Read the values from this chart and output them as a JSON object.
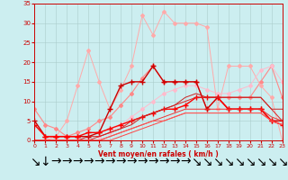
{
  "xlabel": "Vent moyen/en rafales ( km/h )",
  "xlim": [
    0,
    23
  ],
  "ylim": [
    0,
    35
  ],
  "yticks": [
    0,
    5,
    10,
    15,
    20,
    25,
    30,
    35
  ],
  "xticks": [
    0,
    1,
    2,
    3,
    4,
    5,
    6,
    7,
    8,
    9,
    10,
    11,
    12,
    13,
    14,
    15,
    16,
    17,
    18,
    19,
    20,
    21,
    22,
    23
  ],
  "bg_color": "#cceef0",
  "grid_color": "#aacccc",
  "lines": [
    {
      "x": [
        0,
        1,
        2,
        3,
        4,
        5,
        6,
        7,
        8,
        9,
        10,
        11,
        12,
        13,
        14,
        15,
        16,
        17,
        18,
        19,
        20,
        21,
        22,
        23
      ],
      "y": [
        8,
        4,
        3,
        1,
        2,
        3,
        5,
        6,
        9,
        12,
        16,
        19,
        15,
        15,
        15,
        15,
        8,
        11,
        11,
        11,
        11,
        15,
        19,
        11
      ],
      "color": "#ff8888",
      "lw": 0.8,
      "marker": "D",
      "ms": 2.0,
      "ls": "-"
    },
    {
      "x": [
        0,
        1,
        2,
        3,
        4,
        5,
        6,
        7,
        8,
        9,
        10,
        11,
        12,
        13,
        14,
        15,
        16,
        17,
        18,
        19,
        20,
        21,
        22,
        23
      ],
      "y": [
        0,
        0,
        1,
        5,
        14,
        23,
        15,
        8,
        13,
        19,
        32,
        27,
        33,
        30,
        30,
        30,
        29,
        8,
        19,
        19,
        19,
        14,
        11,
        0
      ],
      "color": "#ffaaaa",
      "lw": 0.7,
      "marker": "D",
      "ms": 2.0,
      "ls": "-"
    },
    {
      "x": [
        0,
        1,
        2,
        3,
        4,
        5,
        6,
        7,
        8,
        9,
        10,
        11,
        12,
        13,
        14,
        15,
        16,
        17,
        18,
        19,
        20,
        21,
        22,
        23
      ],
      "y": [
        0,
        0,
        0,
        0,
        0,
        1,
        1,
        2,
        4,
        6,
        8,
        10,
        12,
        13,
        14,
        14,
        13,
        12,
        12,
        13,
        14,
        18,
        19,
        15
      ],
      "color": "#ffbbcc",
      "lw": 0.7,
      "marker": "D",
      "ms": 2.0,
      "ls": "-"
    },
    {
      "x": [
        0,
        1,
        2,
        3,
        4,
        5,
        6,
        7,
        8,
        9,
        10,
        11,
        12,
        13,
        14,
        15,
        16,
        17,
        18,
        19,
        20,
        21,
        22,
        23
      ],
      "y": [
        5,
        1,
        1,
        1,
        1,
        1,
        2,
        8,
        14,
        15,
        15,
        19,
        15,
        15,
        15,
        15,
        8,
        11,
        8,
        8,
        8,
        8,
        5,
        5
      ],
      "color": "#cc0000",
      "lw": 1.0,
      "marker": "+",
      "ms": 4,
      "ls": "-"
    },
    {
      "x": [
        0,
        1,
        2,
        3,
        4,
        5,
        6,
        7,
        8,
        9,
        10,
        11,
        12,
        13,
        14,
        15,
        16,
        17,
        18,
        19,
        20,
        21,
        22,
        23
      ],
      "y": [
        4,
        1,
        1,
        1,
        1,
        2,
        2,
        3,
        4,
        5,
        6,
        7,
        8,
        8,
        9,
        11,
        11,
        11,
        8,
        8,
        8,
        8,
        5,
        4
      ],
      "color": "#ff0000",
      "lw": 1.0,
      "marker": "+",
      "ms": 4,
      "ls": "-"
    },
    {
      "x": [
        0,
        1,
        2,
        3,
        4,
        5,
        6,
        7,
        8,
        9,
        10,
        11,
        12,
        13,
        14,
        15,
        16,
        17,
        18,
        19,
        20,
        21,
        22,
        23
      ],
      "y": [
        0,
        0,
        0,
        0,
        0,
        0,
        1,
        2,
        3,
        5,
        6,
        7,
        8,
        9,
        10,
        11,
        11,
        11,
        11,
        11,
        11,
        11,
        8,
        5
      ],
      "color": "#dd2222",
      "lw": 0.7,
      "marker": null,
      "ms": 0,
      "ls": "-"
    },
    {
      "x": [
        0,
        1,
        2,
        3,
        4,
        5,
        6,
        7,
        8,
        9,
        10,
        11,
        12,
        13,
        14,
        15,
        16,
        17,
        18,
        19,
        20,
        21,
        22,
        23
      ],
      "y": [
        0,
        0,
        0,
        0,
        0,
        1,
        1,
        2,
        3,
        4,
        6,
        7,
        8,
        9,
        11,
        12,
        11,
        11,
        11,
        11,
        11,
        11,
        8,
        8
      ],
      "color": "#cc2222",
      "lw": 0.7,
      "marker": null,
      "ms": 0,
      "ls": "-"
    },
    {
      "x": [
        0,
        1,
        2,
        3,
        4,
        5,
        6,
        7,
        8,
        9,
        10,
        11,
        12,
        13,
        14,
        15,
        16,
        17,
        18,
        19,
        20,
        21,
        22,
        23
      ],
      "y": [
        0,
        0,
        0,
        0,
        0,
        0,
        0,
        1,
        2,
        3,
        4,
        5,
        6,
        7,
        8,
        8,
        8,
        8,
        8,
        8,
        8,
        8,
        6,
        5
      ],
      "color": "#ee3333",
      "lw": 0.7,
      "marker": null,
      "ms": 0,
      "ls": "-"
    },
    {
      "x": [
        0,
        1,
        2,
        3,
        4,
        5,
        6,
        7,
        8,
        9,
        10,
        11,
        12,
        13,
        14,
        15,
        16,
        17,
        18,
        19,
        20,
        21,
        22,
        23
      ],
      "y": [
        0,
        0,
        0,
        0,
        0,
        0,
        0,
        0,
        1,
        2,
        3,
        4,
        5,
        6,
        7,
        7,
        7,
        7,
        7,
        7,
        7,
        7,
        5,
        4
      ],
      "color": "#ff4444",
      "lw": 0.7,
      "marker": null,
      "ms": 0,
      "ls": "-"
    },
    {
      "x": [
        0,
        1,
        2,
        3,
        4,
        5,
        6,
        7,
        8,
        9,
        10,
        11,
        12,
        13,
        14,
        15,
        16,
        17,
        18,
        19,
        20,
        21,
        22,
        23
      ],
      "y": [
        0,
        0,
        0,
        0,
        0,
        0,
        0,
        1,
        2,
        3,
        4,
        5,
        5,
        6,
        7,
        7,
        7,
        7,
        7,
        7,
        7,
        7,
        5,
        4
      ],
      "color": "#ff5555",
      "lw": 0.7,
      "marker": null,
      "ms": 0,
      "ls": "-"
    }
  ],
  "arrow_row": "↘ → → → → → → → → → → → → → → ↘ ↘ ↘ ↘ ↘ ↘ ↘ ↘ ↘"
}
